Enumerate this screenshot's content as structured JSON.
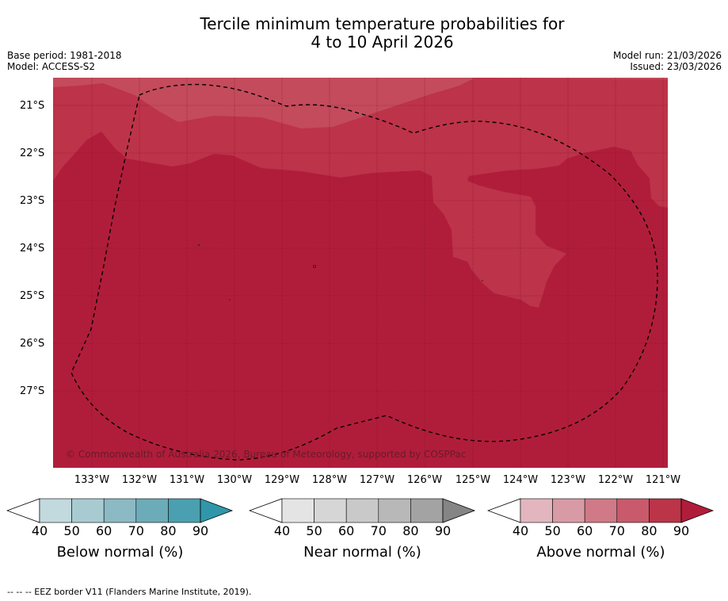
{
  "title_line1": "Tercile minimum temperature probabilities for",
  "title_line2": "4 to 10 April 2026",
  "meta_left": {
    "base_period": "Base period: 1981-2018",
    "model": "Model: ACCESS-S2"
  },
  "meta_right": {
    "model_run": "Model run: 21/03/2026",
    "issued": "Issued: 23/03/2026"
  },
  "latitude_labels": [
    "21°S",
    "22°S",
    "23°S",
    "24°S",
    "25°S",
    "26°S",
    "27°S"
  ],
  "longitude_labels": [
    "133°W",
    "132°W",
    "131°W",
    "130°W",
    "129°W",
    "128°W",
    "127°W",
    "126°W",
    "125°W",
    "124°W",
    "123°W",
    "122°W",
    "121°W"
  ],
  "copyright": "© Commonwealth of Australia 2026, Bureau of Meteorology, supported by COSPPac",
  "colorbars": [
    {
      "label": "Below normal (%)",
      "ticks": [
        "40",
        "50",
        "60",
        "70",
        "80",
        "90"
      ],
      "colors": [
        "#c2d9de",
        "#a8cbd2",
        "#8bbac4",
        "#6cabb8",
        "#4aa0b0"
      ],
      "extend_color": "#3097aa"
    },
    {
      "label": "Near normal (%)",
      "ticks": [
        "40",
        "50",
        "60",
        "70",
        "80",
        "90"
      ],
      "colors": [
        "#e4e4e4",
        "#d6d6d6",
        "#c9c9c9",
        "#b8b8b8",
        "#a3a3a3"
      ],
      "extend_color": "#858585"
    },
    {
      "label": "Above normal (%)",
      "ticks": [
        "40",
        "50",
        "60",
        "70",
        "80",
        "90"
      ],
      "colors": [
        "#e3b6bf",
        "#d89aa5",
        "#cf7a86",
        "#c85a6c",
        "#bb3448"
      ],
      "extend_color": "#b01d3a"
    }
  ],
  "footer": "--  --  -- EEZ border V11 (Flanders Marine Institute, 2019).",
  "colors": {
    "prob_80_90": "#b01d3a",
    "prob_70_80": "#bd3349",
    "prob_60_70": "#c34b5c"
  }
}
